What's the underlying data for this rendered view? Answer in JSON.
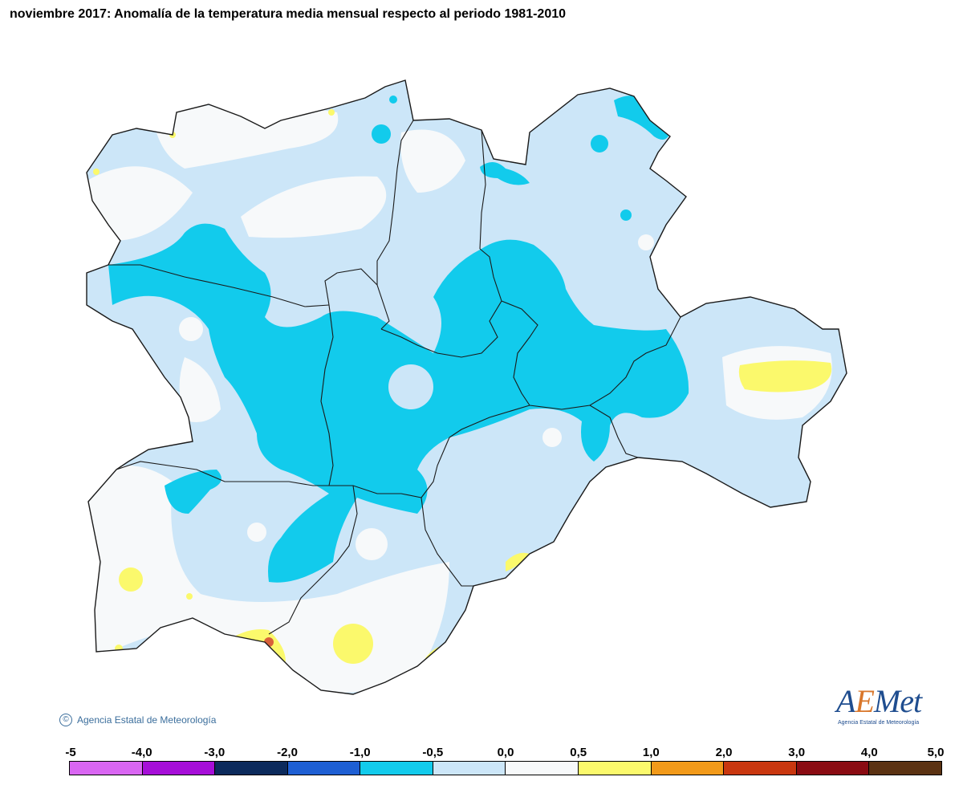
{
  "title": "noviembre 2017: Anomalía de la temperatura media mensual respecto al periodo 1981-2010",
  "copyright": {
    "symbol": "©",
    "text": "Agencia Estatal de Meteorología"
  },
  "logo": {
    "prefix": "A",
    "accent": "E",
    "suffix": "Met",
    "subtitle": "Agencia Estatal de Meteorología"
  },
  "legend": {
    "ticks": [
      "-5",
      "-4,0",
      "-3,0",
      "-2,0",
      "-1,0",
      "-0,5",
      "0,0",
      "0,5",
      "1,0",
      "2,0",
      "3,0",
      "4,0",
      "5,0"
    ],
    "bins": [
      {
        "from": -5.0,
        "to": -4.0,
        "color": "#d966f2"
      },
      {
        "from": -4.0,
        "to": -3.0,
        "color": "#a60ed8"
      },
      {
        "from": -3.0,
        "to": -2.0,
        "color": "#0c2a5c"
      },
      {
        "from": -2.0,
        "to": -1.0,
        "color": "#1e5fd3"
      },
      {
        "from": -1.0,
        "to": -0.5,
        "color": "#12cbec"
      },
      {
        "from": -0.5,
        "to": 0.0,
        "color": "#cce6f8"
      },
      {
        "from": 0.0,
        "to": 0.5,
        "color": "#f7f9fa"
      },
      {
        "from": 0.5,
        "to": 1.0,
        "color": "#fbf96c"
      },
      {
        "from": 1.0,
        "to": 2.0,
        "color": "#f29a1a"
      },
      {
        "from": 2.0,
        "to": 3.0,
        "color": "#c9370f"
      },
      {
        "from": 3.0,
        "to": 4.0,
        "color": "#8a0b12"
      },
      {
        "from": 4.0,
        "to": 5.0,
        "color": "#5b3212"
      }
    ]
  },
  "colors": {
    "outline": "#1a1a1a",
    "near_zero": "#f7f9fa",
    "slightly_cold": "#cce6f8",
    "cold": "#12cbec",
    "warm": "#fbf96c",
    "hot_spot": "#d8603a"
  }
}
